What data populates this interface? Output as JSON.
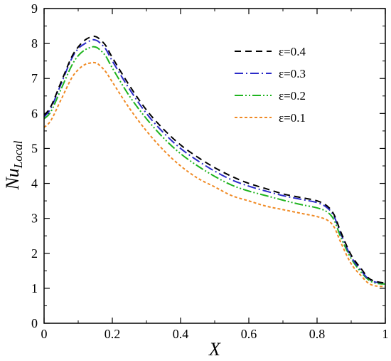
{
  "chart_data": {
    "type": "line",
    "xlabel": "X",
    "ylabel_main": "Nu",
    "ylabel_sub": "Local",
    "xlim": [
      0,
      1
    ],
    "ylim": [
      0,
      9
    ],
    "xticks": [
      0,
      0.2,
      0.4,
      0.6,
      0.8,
      1
    ],
    "xtick_labels": [
      "0",
      "0.2",
      "0.4",
      "0.6",
      "0.8",
      "1"
    ],
    "yticks": [
      0,
      1,
      2,
      3,
      4,
      5,
      6,
      7,
      8,
      9
    ],
    "ytick_labels": [
      "0",
      "1",
      "2",
      "3",
      "4",
      "5",
      "6",
      "7",
      "8",
      "9"
    ],
    "legend_position": "top-right",
    "x": [
      0,
      0.02,
      0.05,
      0.08,
      0.1,
      0.12,
      0.14,
      0.15,
      0.16,
      0.18,
      0.2,
      0.25,
      0.3,
      0.35,
      0.4,
      0.45,
      0.5,
      0.55,
      0.6,
      0.65,
      0.7,
      0.75,
      0.8,
      0.83,
      0.85,
      0.87,
      0.9,
      0.93,
      0.95,
      0.97,
      1.0
    ],
    "series": [
      {
        "name": "ε=0.4",
        "color": "#000000",
        "dash": "9,6",
        "values": [
          5.95,
          6.2,
          6.9,
          7.6,
          7.9,
          8.1,
          8.2,
          8.2,
          8.15,
          7.95,
          7.6,
          6.8,
          6.1,
          5.55,
          5.1,
          4.75,
          4.45,
          4.2,
          4.0,
          3.85,
          3.7,
          3.6,
          3.5,
          3.35,
          3.1,
          2.6,
          1.95,
          1.55,
          1.3,
          1.2,
          1.15
        ]
      },
      {
        "name": "ε=0.3",
        "color": "#2b2bc8",
        "dash": "12,4,2,4",
        "values": [
          5.9,
          6.15,
          6.85,
          7.55,
          7.85,
          8.0,
          8.1,
          8.1,
          8.05,
          7.85,
          7.5,
          6.7,
          6.0,
          5.45,
          5.0,
          4.65,
          4.35,
          4.1,
          3.92,
          3.78,
          3.65,
          3.55,
          3.45,
          3.3,
          3.05,
          2.55,
          1.9,
          1.5,
          1.27,
          1.18,
          1.15
        ]
      },
      {
        "name": "ε=0.2",
        "color": "#1fb41f",
        "dash": "12,3,2,3,2,3",
        "values": [
          5.85,
          6.05,
          6.7,
          7.35,
          7.65,
          7.82,
          7.9,
          7.9,
          7.85,
          7.65,
          7.3,
          6.5,
          5.85,
          5.3,
          4.85,
          4.5,
          4.2,
          3.95,
          3.78,
          3.65,
          3.52,
          3.4,
          3.3,
          3.18,
          2.95,
          2.45,
          1.85,
          1.45,
          1.25,
          1.15,
          1.12
        ]
      },
      {
        "name": "ε=0.1",
        "color": "#f08a24",
        "dash": "4,3",
        "values": [
          5.6,
          5.8,
          6.4,
          7.0,
          7.25,
          7.4,
          7.45,
          7.45,
          7.4,
          7.2,
          6.9,
          6.15,
          5.5,
          4.95,
          4.5,
          4.15,
          3.9,
          3.65,
          3.5,
          3.35,
          3.25,
          3.15,
          3.05,
          2.95,
          2.75,
          2.3,
          1.7,
          1.35,
          1.15,
          1.07,
          1.05
        ]
      }
    ]
  }
}
